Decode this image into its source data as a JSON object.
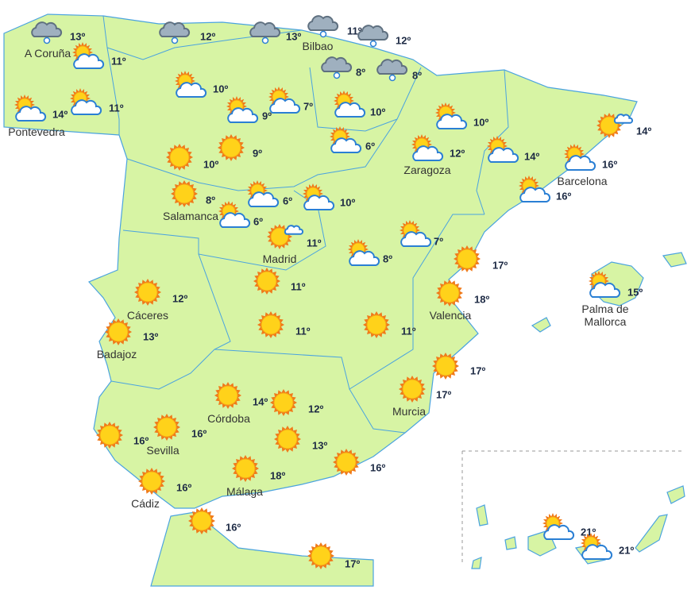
{
  "locations": [
    {
      "temperature": "13º",
      "label": "A Coruña"
    },
    {
      "temperature": "11º"
    },
    {
      "temperature": "12º"
    },
    {
      "temperature": "13º"
    },
    {
      "temperature": "11º",
      "label": "Bilbao"
    },
    {
      "temperature": "12º"
    },
    {
      "temperature": "8º"
    },
    {
      "temperature": "8º"
    },
    {
      "temperature": "14º",
      "label": "Pontevedra"
    },
    {
      "temperature": "11º"
    },
    {
      "temperature": "10º"
    },
    {
      "temperature": "9º"
    },
    {
      "temperature": "7º"
    },
    {
      "temperature": "10º"
    },
    {
      "temperature": "6º"
    },
    {
      "temperature": "10º"
    },
    {
      "temperature": "12º",
      "label": "Zaragoza"
    },
    {
      "temperature": "14º"
    },
    {
      "temperature": "14º"
    },
    {
      "temperature": "16º",
      "label": "Barcelona"
    },
    {
      "temperature": "16º"
    },
    {
      "temperature": "10º"
    },
    {
      "temperature": "9º"
    },
    {
      "temperature": "8º",
      "label": "Salamanca"
    },
    {
      "temperature": "6º"
    },
    {
      "temperature": "6º"
    },
    {
      "temperature": "10º"
    },
    {
      "temperature": "11º",
      "label": "Madrid"
    },
    {
      "temperature": "8º"
    },
    {
      "temperature": "7º"
    },
    {
      "temperature": "17º"
    },
    {
      "temperature": "12º",
      "label": "Cáceres"
    },
    {
      "temperature": "11º"
    },
    {
      "temperature": "18º",
      "label": "Valencia"
    },
    {
      "temperature": "15º",
      "label": "Palma de Mallorca"
    },
    {
      "temperature": "13º",
      "label": "Badajoz"
    },
    {
      "temperature": "11º"
    },
    {
      "temperature": "11º"
    },
    {
      "temperature": "17º"
    },
    {
      "temperature": "17º",
      "label": "Murcia"
    },
    {
      "temperature": "14º",
      "label": "Córdoba"
    },
    {
      "temperature": "12º"
    },
    {
      "temperature": "16º"
    },
    {
      "temperature": "16º",
      "label": "Sevilla"
    },
    {
      "temperature": "13º"
    },
    {
      "temperature": "16º"
    },
    {
      "temperature": "18º",
      "label": "Málaga"
    },
    {
      "temperature": "16º",
      "label": "Cádiz"
    },
    {
      "temperature": "16º"
    },
    {
      "temperature": "17º"
    },
    {
      "temperature": "21º"
    },
    {
      "temperature": "21º"
    }
  ]
}
